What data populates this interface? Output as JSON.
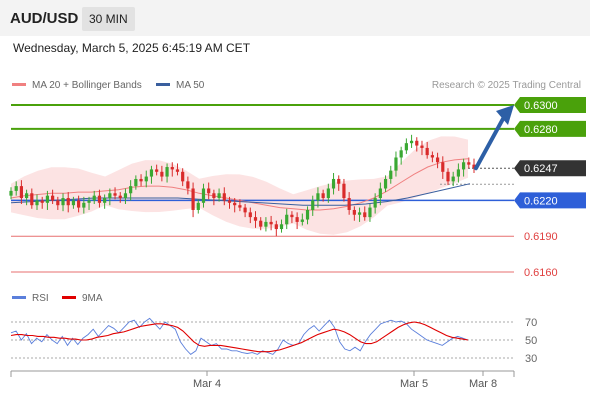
{
  "header": {
    "symbol": "AUD/USD",
    "timeframe": "30 MIN"
  },
  "timestamp": "Wednesday, March 5, 2025 6:45:19 AM CET",
  "legend": {
    "ma20_label": "MA 20 + Bollinger Bands",
    "ma50_label": "MA 50",
    "credit": "Research © 2025 Trading Central",
    "ma20_color": "#f08080",
    "ma50_color": "#3a5f9e"
  },
  "rsi_legend": {
    "rsi_label": "RSI",
    "ma_label": "9MA",
    "rsi_color": "#5b7fdb",
    "ma_color": "#e00000"
  },
  "levels": [
    {
      "value": "0.6300",
      "kind": "resistance",
      "color": "#4aa10b"
    },
    {
      "value": "0.6280",
      "kind": "resistance",
      "color": "#4aa10b"
    },
    {
      "value": "0.6247",
      "kind": "last",
      "color": "#333333"
    },
    {
      "value": "0.6220",
      "kind": "pivot",
      "color": "#2e5fd8"
    },
    {
      "value": "0.6190",
      "kind": "support",
      "color": "#e04040"
    },
    {
      "value": "0.6160",
      "kind": "support",
      "color": "#e04040"
    }
  ],
  "rsi_ticks": [
    "70",
    "50",
    "30"
  ],
  "x_ticks": [
    "Mar 4",
    "Mar 5",
    "Mar 8"
  ],
  "colors": {
    "up": "#3aa833",
    "down": "#d92b2b",
    "band_fill": "#fcdede",
    "forecast_arrow": "#2d5fa6"
  },
  "chart_data": {
    "type": "candlestick",
    "series": [
      {
        "name": "MA 20 + Bollinger Bands"
      },
      {
        "name": "MA 50"
      }
    ],
    "close": [
      0.6228,
      0.6232,
      0.6222,
      0.6226,
      0.6216,
      0.622,
      0.6218,
      0.6224,
      0.622,
      0.6216,
      0.6222,
      0.6216,
      0.622,
      0.6214,
      0.6218,
      0.622,
      0.6224,
      0.6218,
      0.6222,
      0.6226,
      0.6224,
      0.6222,
      0.6226,
      0.6232,
      0.6238,
      0.6236,
      0.624,
      0.6246,
      0.6244,
      0.624,
      0.6248,
      0.6246,
      0.6244,
      0.6236,
      0.623,
      0.6212,
      0.6218,
      0.623,
      0.6226,
      0.6222,
      0.6226,
      0.622,
      0.6218,
      0.6216,
      0.6214,
      0.621,
      0.6206,
      0.6203,
      0.6198,
      0.6202,
      0.62,
      0.6196,
      0.62,
      0.6208,
      0.6206,
      0.6202,
      0.6204,
      0.6212,
      0.622,
      0.6226,
      0.6222,
      0.623,
      0.6238,
      0.6234,
      0.6222,
      0.6212,
      0.6208,
      0.621,
      0.6206,
      0.6214,
      0.6222,
      0.623,
      0.6238,
      0.6245,
      0.6256,
      0.6262,
      0.6268,
      0.627,
      0.6266,
      0.6264,
      0.6258,
      0.6256,
      0.6252,
      0.6244,
      0.6236,
      0.624,
      0.6246,
      0.6252,
      0.625,
      0.6247
    ],
    "last": 0.6247,
    "levels": [
      0.63,
      0.628,
      0.6247,
      0.622,
      0.619,
      0.616
    ],
    "ma20": [
      0.6222,
      0.6224,
      0.6225,
      0.6226,
      0.6226,
      0.6227,
      0.6227,
      0.6228,
      0.6229,
      0.6231,
      0.6232,
      0.6232,
      0.6231,
      0.6229,
      0.6226,
      0.6224,
      0.6222,
      0.622,
      0.6218,
      0.6216,
      0.6214,
      0.6213,
      0.6212,
      0.6212,
      0.6213,
      0.6215,
      0.6218,
      0.6222,
      0.6228,
      0.6235,
      0.6242,
      0.6248,
      0.6252,
      0.6254,
      0.6255
    ],
    "ma50": [
      0.6218,
      0.6219,
      0.622,
      0.6221,
      0.6222,
      0.6222,
      0.6222,
      0.6222,
      0.6222,
      0.6221,
      0.622,
      0.6219,
      0.6218,
      0.6217,
      0.6216,
      0.6216,
      0.6216,
      0.6217,
      0.6219,
      0.6222,
      0.6226,
      0.623,
      0.6234
    ],
    "forecast_target": 0.63,
    "rsi": [
      58,
      60,
      50,
      57,
      46,
      52,
      48,
      56,
      50,
      46,
      54,
      44,
      52,
      45,
      52,
      56,
      62,
      54,
      60,
      66,
      63,
      58,
      64,
      70,
      72,
      64,
      70,
      74,
      68,
      62,
      70,
      66,
      62,
      48,
      40,
      34,
      38,
      52,
      48,
      44,
      46,
      40,
      40,
      38,
      38,
      36,
      35,
      36,
      34,
      38,
      36,
      34,
      40,
      50,
      46,
      44,
      46,
      56,
      62,
      66,
      60,
      66,
      72,
      64,
      48,
      40,
      38,
      42,
      38,
      48,
      56,
      62,
      68,
      70,
      72,
      70,
      71,
      68,
      62,
      58,
      54,
      50,
      48,
      46,
      44,
      48,
      52,
      54,
      52,
      50
    ],
    "rsi_ma": [
      55,
      56,
      56,
      55,
      55,
      54,
      54,
      53,
      53,
      52,
      52,
      51,
      51,
      50,
      50,
      51,
      53,
      54,
      55,
      57,
      58,
      59,
      61,
      63,
      65,
      66,
      67,
      68,
      68,
      67,
      66,
      64,
      60,
      54,
      48,
      44,
      43,
      44,
      44,
      44,
      43,
      42,
      41,
      40,
      39,
      38,
      37,
      37,
      37,
      38,
      39,
      41,
      43,
      45,
      47,
      50,
      53,
      56,
      58,
      60,
      62,
      61,
      59,
      56,
      52,
      48,
      46,
      46,
      48,
      52,
      56,
      60,
      64,
      67,
      69,
      70,
      69,
      67,
      64,
      61,
      58,
      55,
      53,
      52,
      51,
      50
    ],
    "rsi_levels": [
      70,
      50,
      30
    ],
    "x_ticks": [
      "Mar 4",
      "Mar 5",
      "Mar 8"
    ]
  }
}
